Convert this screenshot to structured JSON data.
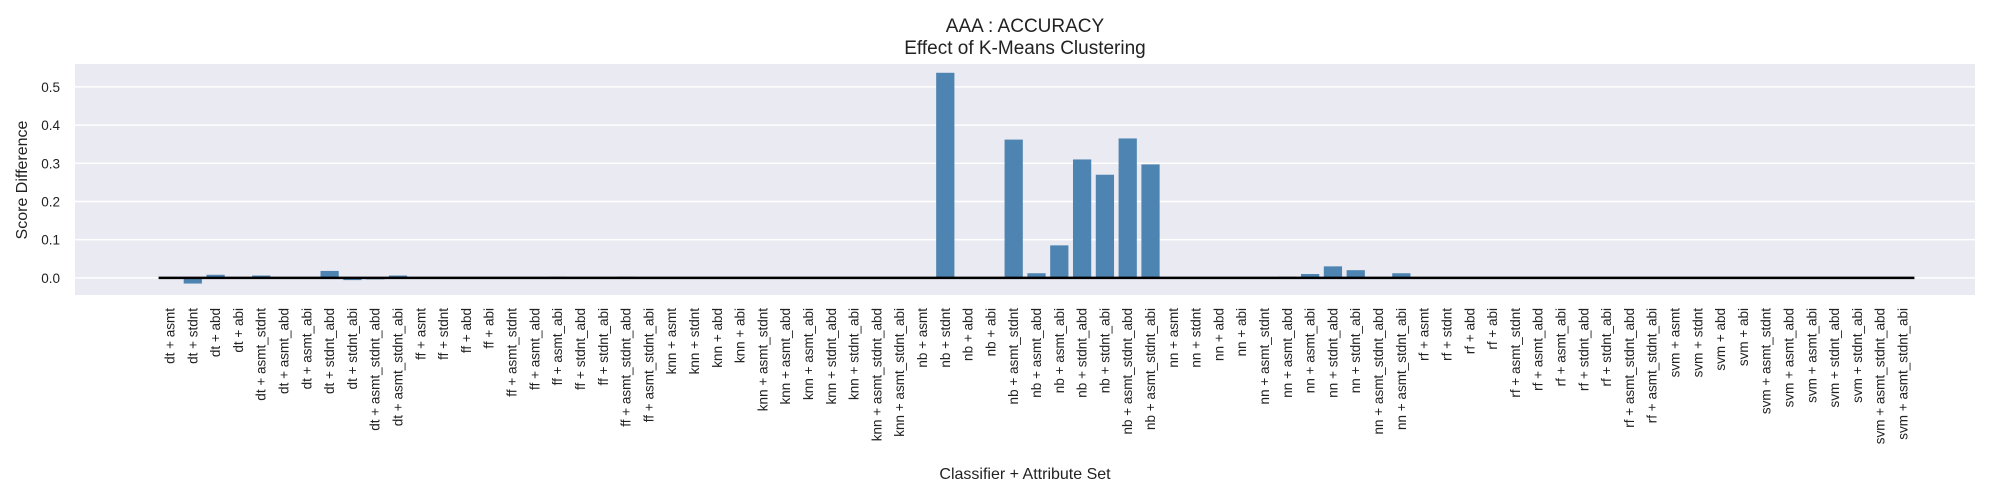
{
  "chart_data": {
    "type": "bar",
    "title": "AAA : ACCURACY",
    "subtitle": "Effect of K-Means Clustering",
    "xlabel": "Classifier + Attribute Set",
    "ylabel": "Score Difference",
    "ylim": [
      -0.045,
      0.56
    ],
    "yticks": [
      0.0,
      0.1,
      0.2,
      0.3,
      0.4,
      0.5
    ],
    "ytick_labels": [
      "0.0",
      "0.1",
      "0.2",
      "0.3",
      "0.4",
      "0.5"
    ],
    "grid": true,
    "zero_line": true,
    "bar_color": "#4e84b1",
    "background_color": "#eaeaf2",
    "categories": [
      "dt + asmt",
      "dt + stdnt",
      "dt + abd",
      "dt + abi",
      "dt + asmt_stdnt",
      "dt + asmt_abd",
      "dt + asmt_abi",
      "dt + stdnt_abd",
      "dt + stdnt_abi",
      "dt + asmt_stdnt_abd",
      "dt + asmt_stdnt_abi",
      "ff + asmt",
      "ff + stdnt",
      "ff + abd",
      "ff + abi",
      "ff + asmt_stdnt",
      "ff + asmt_abd",
      "ff + asmt_abi",
      "ff + stdnt_abd",
      "ff + stdnt_abi",
      "ff + asmt_stdnt_abd",
      "ff + asmt_stdnt_abi",
      "knn + asmt",
      "knn + stdnt",
      "knn + abd",
      "knn + abi",
      "knn + asmt_stdnt",
      "knn + asmt_abd",
      "knn + asmt_abi",
      "knn + stdnt_abd",
      "knn + stdnt_abi",
      "knn + asmt_stdnt_abd",
      "knn + asmt_stdnt_abi",
      "nb + asmt",
      "nb + stdnt",
      "nb + abd",
      "nb + abi",
      "nb + asmt_stdnt",
      "nb + asmt_abd",
      "nb + asmt_abi",
      "nb + stdnt_abd",
      "nb + stdnt_abi",
      "nb + asmt_stdnt_abd",
      "nb + asmt_stdnt_abi",
      "nn + asmt",
      "nn + stdnt",
      "nn + abd",
      "nn + abi",
      "nn + asmt_stdnt",
      "nn + asmt_abd",
      "nn + asmt_abi",
      "nn + stdnt_abd",
      "nn + stdnt_abi",
      "nn + asmt_stdnt_abd",
      "nn + asmt_stdnt_abi",
      "rf + asmt",
      "rf + stdnt",
      "rf + abd",
      "rf + abi",
      "rf + asmt_stdnt",
      "rf + asmt_abd",
      "rf + asmt_abi",
      "rf + stdnt_abd",
      "rf + stdnt_abi",
      "rf + asmt_stdnt_abd",
      "rf + asmt_stdnt_abi",
      "svm + asmt",
      "svm + stdnt",
      "svm + abd",
      "svm + abi",
      "svm + asmt_stdnt",
      "svm + asmt_abd",
      "svm + asmt_abi",
      "svm + stdnt_abd",
      "svm + stdnt_abi",
      "svm + asmt_stdnt_abd",
      "svm + asmt_stdnt_abi"
    ],
    "values": [
      0.0,
      -0.015,
      0.008,
      0.0,
      0.006,
      -0.003,
      -0.003,
      0.018,
      -0.006,
      -0.004,
      0.006,
      0.0,
      0.0,
      0.0,
      0.0,
      0.0,
      0.0,
      0.003,
      -0.003,
      0.0,
      0.003,
      0.0,
      0.0,
      0.0,
      0.0,
      0.0,
      0.0,
      0.0,
      0.0,
      0.0,
      0.0,
      0.0,
      0.0,
      0.0,
      0.537,
      0.0,
      0.0,
      0.362,
      0.012,
      0.085,
      0.31,
      0.27,
      0.365,
      0.297,
      0.0,
      0.0,
      0.0,
      0.0,
      0.0,
      0.003,
      0.01,
      0.03,
      0.02,
      0.0,
      0.012,
      0.0,
      0.0,
      0.0,
      0.0,
      0.0,
      0.0,
      0.0,
      0.0,
      0.0,
      0.0,
      0.0,
      0.0,
      0.0,
      0.0,
      0.0,
      0.0,
      0.0,
      0.0,
      0.0,
      0.0,
      0.0,
      0.0
    ]
  }
}
